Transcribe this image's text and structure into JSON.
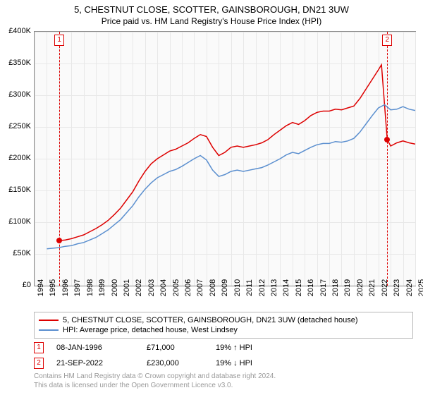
{
  "title": "5, CHESTNUT CLOSE, SCOTTER, GAINSBOROUGH, DN21 3UW",
  "subtitle": "Price paid vs. HM Land Registry's House Price Index (HPI)",
  "chart": {
    "type": "line",
    "background_color": "#fafafa",
    "grid_color": "#e8e8e8",
    "border_color": "#888888",
    "ylim": [
      0,
      400000
    ],
    "ytick_step": 50000,
    "yticks": [
      "£0",
      "£50K",
      "£100K",
      "£150K",
      "£200K",
      "£250K",
      "£300K",
      "£350K",
      "£400K"
    ],
    "xlim": [
      1994,
      2025
    ],
    "xticks": [
      "1994",
      "1995",
      "1996",
      "1997",
      "1998",
      "1999",
      "2000",
      "2001",
      "2002",
      "2003",
      "2004",
      "2005",
      "2006",
      "2007",
      "2008",
      "2009",
      "2010",
      "2011",
      "2012",
      "2013",
      "2014",
      "2015",
      "2016",
      "2017",
      "2018",
      "2019",
      "2020",
      "2021",
      "2022",
      "2023",
      "2024",
      "2025"
    ],
    "series": [
      {
        "name": "price_paid",
        "color": "#dd0000",
        "line_width": 1.5,
        "points_x": [
          1996.02,
          1996.5,
          1997,
          1997.5,
          1998,
          1998.5,
          1999,
          1999.5,
          2000,
          2000.5,
          2001,
          2001.5,
          2002,
          2002.5,
          2003,
          2003.5,
          2004,
          2004.5,
          2005,
          2005.5,
          2006,
          2006.5,
          2007,
          2007.5,
          2008,
          2008.5,
          2009,
          2009.5,
          2010,
          2010.5,
          2011,
          2011.5,
          2012,
          2012.5,
          2013,
          2013.5,
          2014,
          2014.5,
          2015,
          2015.5,
          2016,
          2016.5,
          2017,
          2017.5,
          2018,
          2018.5,
          2019,
          2019.5,
          2020,
          2020.5,
          2021,
          2021.5,
          2022,
          2022.25,
          2022.72,
          2023,
          2023.5,
          2024,
          2024.5,
          2025
        ],
        "points_y": [
          71000,
          72000,
          74000,
          77000,
          80000,
          85000,
          90000,
          96000,
          103000,
          112000,
          122000,
          135000,
          148000,
          165000,
          180000,
          192000,
          200000,
          206000,
          212000,
          215000,
          220000,
          225000,
          232000,
          238000,
          235000,
          218000,
          205000,
          210000,
          218000,
          220000,
          218000,
          220000,
          222000,
          225000,
          230000,
          238000,
          245000,
          252000,
          257000,
          254000,
          260000,
          268000,
          273000,
          275000,
          275000,
          278000,
          277000,
          280000,
          283000,
          295000,
          310000,
          325000,
          340000,
          348000,
          230000,
          220000,
          225000,
          228000,
          225000,
          223000
        ]
      },
      {
        "name": "hpi",
        "color": "#5b8fcf",
        "line_width": 1.5,
        "points_x": [
          1995,
          1995.5,
          1996,
          1996.5,
          1997,
          1997.5,
          1998,
          1998.5,
          1999,
          1999.5,
          2000,
          2000.5,
          2001,
          2001.5,
          2002,
          2002.5,
          2003,
          2003.5,
          2004,
          2004.5,
          2005,
          2005.5,
          2006,
          2006.5,
          2007,
          2007.5,
          2008,
          2008.5,
          2009,
          2009.5,
          2010,
          2010.5,
          2011,
          2011.5,
          2012,
          2012.5,
          2013,
          2013.5,
          2014,
          2014.5,
          2015,
          2015.5,
          2016,
          2016.5,
          2017,
          2017.5,
          2018,
          2018.5,
          2019,
          2019.5,
          2020,
          2020.5,
          2021,
          2021.5,
          2022,
          2022.5,
          2023,
          2023.5,
          2024,
          2024.5,
          2025
        ],
        "points_y": [
          58000,
          59000,
          60000,
          62000,
          63000,
          66000,
          68000,
          72000,
          76000,
          82000,
          88000,
          96000,
          104000,
          115000,
          126000,
          140000,
          152000,
          162000,
          170000,
          175000,
          180000,
          183000,
          188000,
          194000,
          200000,
          205000,
          198000,
          182000,
          172000,
          175000,
          180000,
          182000,
          180000,
          182000,
          184000,
          186000,
          190000,
          195000,
          200000,
          206000,
          210000,
          208000,
          213000,
          218000,
          222000,
          224000,
          224000,
          227000,
          226000,
          228000,
          232000,
          242000,
          255000,
          268000,
          280000,
          285000,
          277000,
          278000,
          282000,
          278000,
          276000
        ]
      }
    ],
    "markers": [
      {
        "id": "1",
        "x": 1996.02,
        "y": 71000
      },
      {
        "id": "2",
        "x": 2022.72,
        "y": 230000
      }
    ],
    "marker_box_color": "#dd0000"
  },
  "legend": {
    "items": [
      {
        "color": "#dd0000",
        "label": "5, CHESTNUT CLOSE, SCOTTER, GAINSBOROUGH, DN21 3UW (detached house)"
      },
      {
        "color": "#5b8fcf",
        "label": "HPI: Average price, detached house, West Lindsey"
      }
    ]
  },
  "transactions": [
    {
      "id": "1",
      "date": "08-JAN-1996",
      "price": "£71,000",
      "pct": "19% ↑ HPI"
    },
    {
      "id": "2",
      "date": "21-SEP-2022",
      "price": "£230,000",
      "pct": "19% ↓ HPI"
    }
  ],
  "footer": {
    "line1": "Contains HM Land Registry data © Crown copyright and database right 2024.",
    "line2": "This data is licensed under the Open Government Licence v3.0."
  }
}
